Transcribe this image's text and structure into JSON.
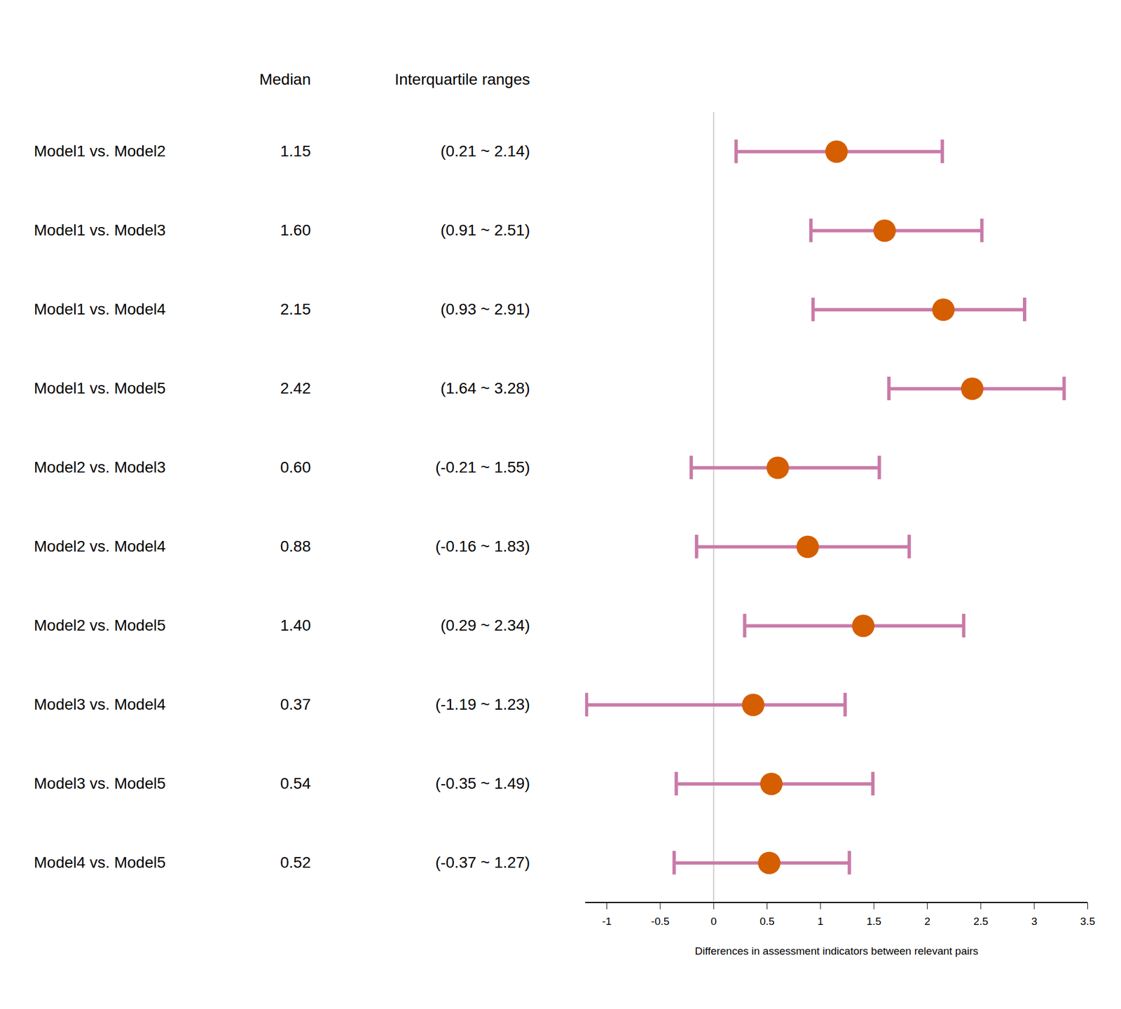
{
  "chart_data": {
    "type": "forest",
    "column_headers": [
      "Median",
      "Interquartile ranges"
    ],
    "categories": [
      "Model1 vs. Model2",
      "Model1 vs. Model3",
      "Model1 vs. Model4",
      "Model1 vs. Model5",
      "Model2 vs. Model3",
      "Model2 vs. Model4",
      "Model2 vs. Model5",
      "Model3 vs. Model4",
      "Model3 vs. Model5",
      "Model4 vs. Model5"
    ],
    "values": [
      1.15,
      1.6,
      2.15,
      2.42,
      0.6,
      0.88,
      1.4,
      0.37,
      0.54,
      0.52
    ],
    "value_labels": [
      "1.15",
      "1.60",
      "2.15",
      "2.42",
      "0.60",
      "0.88",
      "1.40",
      "0.37",
      "0.54",
      "0.52"
    ],
    "lower": [
      0.21,
      0.91,
      0.93,
      1.64,
      -0.21,
      -0.16,
      0.29,
      -1.19,
      -0.35,
      -0.37
    ],
    "upper": [
      2.14,
      2.51,
      2.91,
      3.28,
      1.55,
      1.83,
      2.34,
      1.23,
      1.49,
      1.27
    ],
    "interval_labels": [
      "(0.21 ~ 2.14)",
      "(0.91 ~ 2.51)",
      "(0.93 ~ 2.91)",
      "(1.64 ~ 3.28)",
      "(-0.21 ~ 1.55)",
      "(-0.16 ~ 1.83)",
      "(0.29 ~ 2.34)",
      "(-1.19 ~ 1.23)",
      "(-0.35 ~ 1.49)",
      "(-0.37 ~ 1.27)"
    ],
    "x_label": "Differences in assessment indicators between relevant pairs",
    "xlim": [
      -1.2,
      3.5
    ],
    "xticks": [
      -1,
      -0.5,
      0,
      0.5,
      1,
      1.5,
      2,
      2.5,
      3,
      3.5
    ],
    "reference_line": 0,
    "color": "#d55e00"
  }
}
